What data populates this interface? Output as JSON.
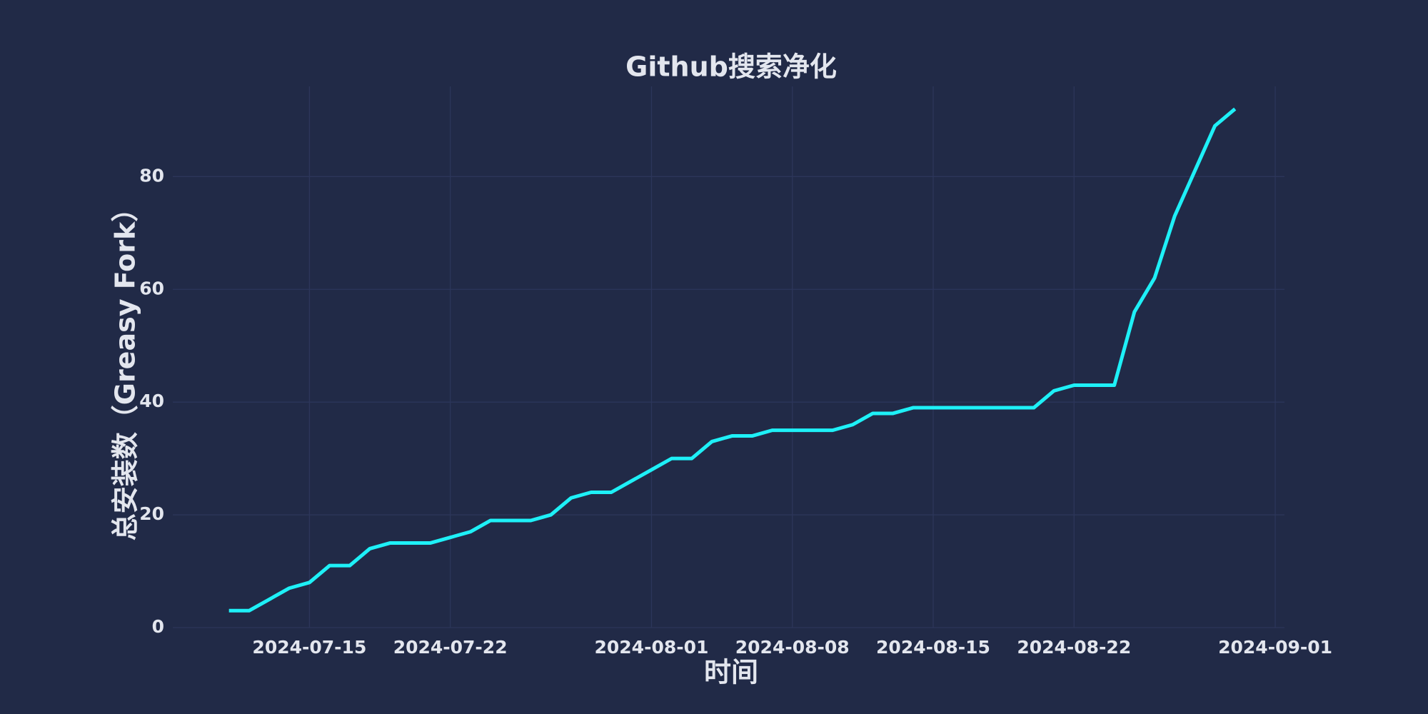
{
  "chart_data": {
    "type": "line",
    "title": "Github搜索净化",
    "x_label": "时间",
    "y_label": "总安装数（Greasy Fork）",
    "x": [
      "2024-07-11",
      "2024-07-12",
      "2024-07-13",
      "2024-07-14",
      "2024-07-15",
      "2024-07-16",
      "2024-07-17",
      "2024-07-18",
      "2024-07-19",
      "2024-07-20",
      "2024-07-21",
      "2024-07-22",
      "2024-07-23",
      "2024-07-24",
      "2024-07-25",
      "2024-07-26",
      "2024-07-27",
      "2024-07-28",
      "2024-07-29",
      "2024-07-30",
      "2024-07-31",
      "2024-08-01",
      "2024-08-02",
      "2024-08-03",
      "2024-08-04",
      "2024-08-05",
      "2024-08-06",
      "2024-08-07",
      "2024-08-08",
      "2024-08-09",
      "2024-08-10",
      "2024-08-11",
      "2024-08-12",
      "2024-08-13",
      "2024-08-14",
      "2024-08-15",
      "2024-08-16",
      "2024-08-17",
      "2024-08-18",
      "2024-08-19",
      "2024-08-20",
      "2024-08-21",
      "2024-08-22",
      "2024-08-23",
      "2024-08-24",
      "2024-08-25",
      "2024-08-26",
      "2024-08-27",
      "2024-08-28",
      "2024-08-29",
      "2024-08-30"
    ],
    "series": [
      {
        "name": "总安装数",
        "color": "#1ef0f7",
        "values": [
          3,
          3,
          5,
          7,
          8,
          11,
          11,
          14,
          15,
          15,
          15,
          16,
          17,
          19,
          19,
          19,
          20,
          23,
          24,
          24,
          26,
          28,
          30,
          30,
          33,
          34,
          34,
          35,
          35,
          35,
          35,
          36,
          38,
          38,
          39,
          39,
          39,
          39,
          39,
          39,
          39,
          42,
          43,
          43,
          43,
          56,
          62,
          73,
          81,
          89,
          92
        ]
      }
    ],
    "xlim": [
      "2024-07-08T05:00",
      "2024-09-01T11:00"
    ],
    "xticks": [
      "2024-07-15",
      "2024-07-22",
      "2024-08-01",
      "2024-08-08",
      "2024-08-15",
      "2024-08-22",
      "2024-09-01"
    ],
    "ylim": [
      0,
      96
    ],
    "yticks": [
      0,
      20,
      40,
      60,
      80
    ],
    "grid": true
  }
}
